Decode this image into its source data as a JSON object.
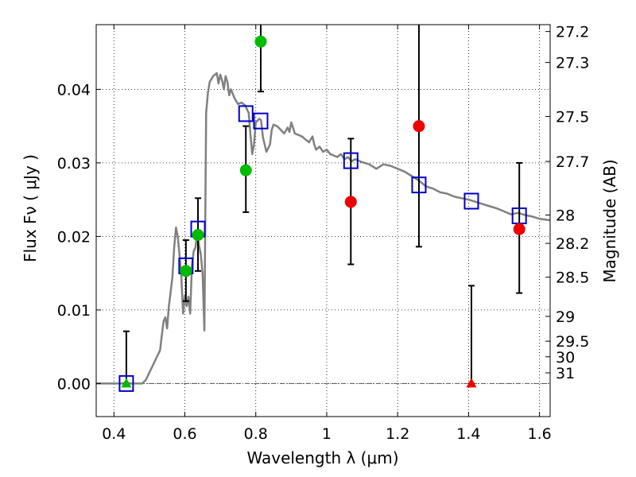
{
  "chart_data": {
    "type": "scatter",
    "xlabel": "Wavelength  λ (μm)",
    "ylabel": "Flux  Fν ( μJy )",
    "ylabel_right": "Magnitude (AB)",
    "xlim": [
      0.35,
      1.63
    ],
    "ylim": [
      -0.0045,
      0.0488
    ],
    "grid": true,
    "x_ticks": [
      {
        "value": 0.4,
        "label": "0.4"
      },
      {
        "value": 0.6,
        "label": "0.6"
      },
      {
        "value": 0.8,
        "label": "0.8"
      },
      {
        "value": 1.0,
        "label": "1"
      },
      {
        "value": 1.2,
        "label": "1.2"
      },
      {
        "value": 1.4,
        "label": "1.4"
      },
      {
        "value": 1.6,
        "label": "1.6"
      }
    ],
    "y_ticks": [
      {
        "value": 0.0,
        "label": "0.00"
      },
      {
        "value": 0.01,
        "label": "0.01"
      },
      {
        "value": 0.02,
        "label": "0.02"
      },
      {
        "value": 0.03,
        "label": "0.03"
      },
      {
        "value": 0.04,
        "label": "0.04"
      }
    ],
    "right_ticks": [
      {
        "value": 27.2,
        "label": "27.2"
      },
      {
        "value": 27.3,
        "label": "27.3"
      },
      {
        "value": 27.5,
        "label": "27.5"
      },
      {
        "value": 27.7,
        "label": "27.7"
      },
      {
        "value": 28.0,
        "label": "28"
      },
      {
        "value": 28.2,
        "label": "28.2"
      },
      {
        "value": 28.5,
        "label": "28.5"
      },
      {
        "value": 29.0,
        "label": "29"
      },
      {
        "value": 29.5,
        "label": "29.5"
      },
      {
        "value": 30.0,
        "label": "30"
      },
      {
        "value": 31.0,
        "label": "31"
      }
    ],
    "colors": {
      "template": "#808080",
      "model_box": "#0000cc",
      "green": "#00bb00",
      "red": "#ee0000",
      "errorbar": "#000000",
      "zero_line": "#555555"
    },
    "series": [
      {
        "kind": "line",
        "points": [
          [
            0.35,
            0.0
          ],
          [
            0.48,
            0.0
          ],
          [
            0.49,
            0.0005
          ],
          [
            0.5,
            0.0015
          ],
          [
            0.51,
            0.0025
          ],
          [
            0.52,
            0.0035
          ],
          [
            0.53,
            0.0045
          ],
          [
            0.535,
            0.0065
          ],
          [
            0.54,
            0.0085
          ],
          [
            0.545,
            0.009
          ],
          [
            0.55,
            0.0075
          ],
          [
            0.555,
            0.0105
          ],
          [
            0.56,
            0.0125
          ],
          [
            0.565,
            0.0145
          ],
          [
            0.57,
            0.0185
          ],
          [
            0.575,
            0.0212
          ],
          [
            0.58,
            0.02
          ],
          [
            0.585,
            0.0175
          ],
          [
            0.59,
            0.0145
          ],
          [
            0.595,
            0.0095
          ],
          [
            0.6,
            0.012
          ],
          [
            0.605,
            0.0105
          ],
          [
            0.61,
            0.0118
          ],
          [
            0.615,
            0.0095
          ],
          [
            0.62,
            0.016
          ],
          [
            0.625,
            0.018
          ],
          [
            0.63,
            0.0185
          ],
          [
            0.635,
            0.0205
          ],
          [
            0.64,
            0.0188
          ],
          [
            0.645,
            0.0175
          ],
          [
            0.65,
            0.015
          ],
          [
            0.655,
            0.0072
          ],
          [
            0.66,
            0.0368
          ],
          [
            0.665,
            0.0395
          ],
          [
            0.67,
            0.041
          ],
          [
            0.68,
            0.0418
          ],
          [
            0.69,
            0.0422
          ],
          [
            0.695,
            0.0408
          ],
          [
            0.7,
            0.042
          ],
          [
            0.705,
            0.0412
          ],
          [
            0.71,
            0.04
          ],
          [
            0.715,
            0.0418
          ],
          [
            0.72,
            0.041
          ],
          [
            0.725,
            0.0392
          ],
          [
            0.73,
            0.04
          ],
          [
            0.74,
            0.0388
          ],
          [
            0.75,
            0.038
          ],
          [
            0.76,
            0.0382
          ],
          [
            0.77,
            0.0378
          ],
          [
            0.78,
            0.0368
          ],
          [
            0.785,
            0.0338
          ],
          [
            0.79,
            0.0312
          ],
          [
            0.795,
            0.0325
          ],
          [
            0.8,
            0.0355
          ],
          [
            0.81,
            0.036
          ],
          [
            0.815,
            0.0358
          ],
          [
            0.82,
            0.0335
          ],
          [
            0.83,
            0.0315
          ],
          [
            0.84,
            0.0325
          ],
          [
            0.845,
            0.0345
          ],
          [
            0.85,
            0.0352
          ],
          [
            0.86,
            0.035
          ],
          [
            0.87,
            0.0345
          ],
          [
            0.88,
            0.034
          ],
          [
            0.89,
            0.0348
          ],
          [
            0.895,
            0.0342
          ],
          [
            0.9,
            0.0355
          ],
          [
            0.905,
            0.0348
          ],
          [
            0.91,
            0.034
          ],
          [
            0.92,
            0.0338
          ],
          [
            0.93,
            0.0336
          ],
          [
            0.94,
            0.0332
          ],
          [
            0.95,
            0.0328
          ],
          [
            0.96,
            0.0336
          ],
          [
            0.965,
            0.0325
          ],
          [
            0.97,
            0.0318
          ],
          [
            0.98,
            0.0322
          ],
          [
            0.99,
            0.0315
          ],
          [
            1.0,
            0.0318
          ],
          [
            1.01,
            0.0312
          ],
          [
            1.02,
            0.031
          ],
          [
            1.03,
            0.0308
          ],
          [
            1.04,
            0.0312
          ],
          [
            1.05,
            0.0305
          ],
          [
            1.06,
            0.0308
          ],
          [
            1.07,
            0.0302
          ],
          [
            1.08,
            0.0305
          ],
          [
            1.09,
            0.0303
          ],
          [
            1.1,
            0.0301
          ],
          [
            1.12,
            0.0298
          ],
          [
            1.14,
            0.0292
          ],
          [
            1.16,
            0.0298
          ],
          [
            1.18,
            0.0296
          ],
          [
            1.2,
            0.0292
          ],
          [
            1.22,
            0.0288
          ],
          [
            1.24,
            0.0282
          ],
          [
            1.26,
            0.0276
          ],
          [
            1.28,
            0.0268
          ],
          [
            1.3,
            0.0265
          ],
          [
            1.32,
            0.026
          ],
          [
            1.34,
            0.0258
          ],
          [
            1.36,
            0.0254
          ],
          [
            1.38,
            0.0252
          ],
          [
            1.4,
            0.025
          ],
          [
            1.42,
            0.0247
          ],
          [
            1.44,
            0.0244
          ],
          [
            1.46,
            0.0241
          ],
          [
            1.48,
            0.0238
          ],
          [
            1.5,
            0.0234
          ],
          [
            1.52,
            0.023
          ],
          [
            1.54,
            0.0232
          ],
          [
            1.56,
            0.0229
          ],
          [
            1.58,
            0.0227
          ],
          [
            1.6,
            0.0224
          ],
          [
            1.63,
            0.0222
          ]
        ]
      },
      {
        "kind": "model-boxes",
        "points": [
          [
            0.435,
            0.0
          ],
          [
            0.603,
            0.016
          ],
          [
            0.637,
            0.021
          ],
          [
            0.772,
            0.0367
          ],
          [
            0.814,
            0.0357
          ],
          [
            1.068,
            0.0303
          ],
          [
            1.26,
            0.027
          ],
          [
            1.408,
            0.0248
          ],
          [
            1.543,
            0.0228
          ]
        ]
      },
      {
        "kind": "errorbars",
        "points": [
          {
            "x": 0.435,
            "low": 0.0,
            "high": 0.0071
          },
          {
            "x": 0.603,
            "low": 0.0112,
            "high": 0.0195
          },
          {
            "x": 0.637,
            "low": 0.0153,
            "high": 0.0252
          },
          {
            "x": 0.772,
            "low": 0.0233,
            "high": 0.035
          },
          {
            "x": 0.814,
            "low": 0.0397,
            "high": 0.0488
          },
          {
            "x": 1.068,
            "low": 0.0162,
            "high": 0.0333
          },
          {
            "x": 1.26,
            "low": 0.0186,
            "high": 0.0488
          },
          {
            "x": 1.408,
            "low": 0.0,
            "high": 0.0133
          },
          {
            "x": 1.543,
            "low": 0.0123,
            "high": 0.03
          }
        ]
      },
      {
        "kind": "circles-green",
        "points": [
          [
            0.603,
            0.0153
          ],
          [
            0.637,
            0.0202
          ],
          [
            0.772,
            0.029
          ],
          [
            0.814,
            0.0465
          ]
        ]
      },
      {
        "kind": "circles-red",
        "points": [
          [
            1.068,
            0.0247
          ],
          [
            1.26,
            0.035
          ],
          [
            1.543,
            0.021
          ]
        ]
      },
      {
        "kind": "upper-limits",
        "points": [
          {
            "x": 0.435,
            "y": 0.0,
            "color": "green"
          },
          {
            "x": 1.408,
            "y": 0.0,
            "color": "red"
          }
        ]
      }
    ]
  }
}
